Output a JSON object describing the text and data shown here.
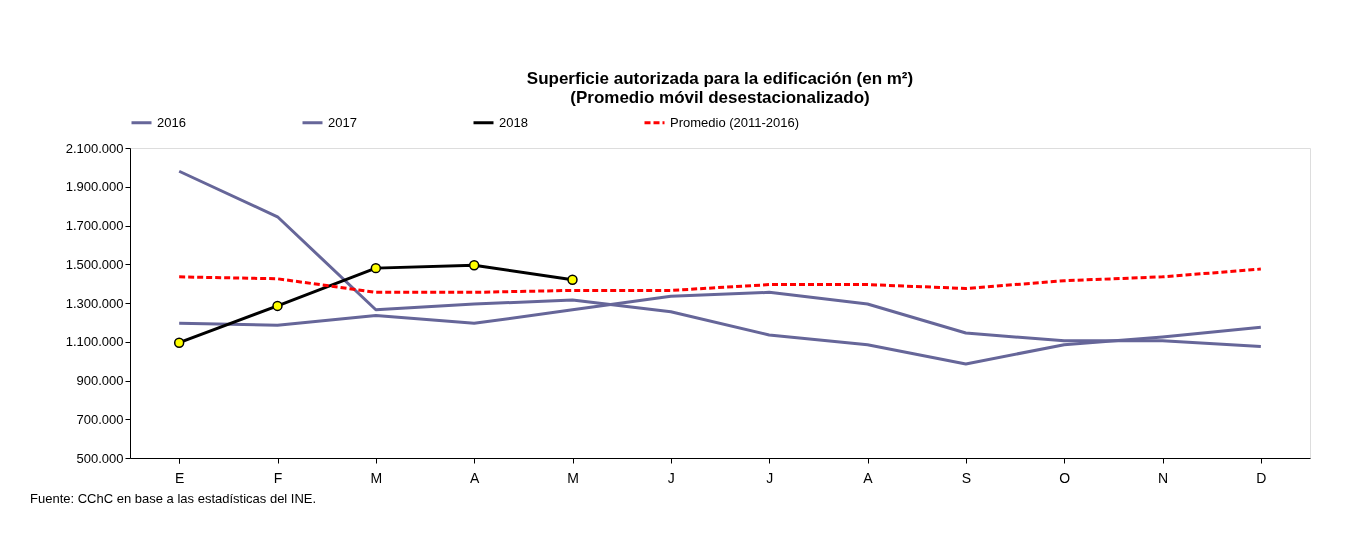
{
  "chart_data": {
    "type": "line",
    "title": [
      "Superficie autorizada para la edificación (en m²)",
      "(Promedio móvil desestacionalizado)"
    ],
    "categories": [
      "E",
      "F",
      "M",
      "A",
      "M",
      "J",
      "J",
      "A",
      "S",
      "O",
      "N",
      "D"
    ],
    "series": [
      {
        "name": "2016",
        "color": "#666699",
        "values": [
          1980000,
          1745000,
          1265000,
          1295000,
          1315000,
          1255000,
          1135000,
          1085000,
          985000,
          1085000,
          1125000,
          1175000
        ]
      },
      {
        "name": "2017",
        "color": "#666699",
        "values": [
          1195000,
          1185000,
          1235000,
          1195000,
          1265000,
          1335000,
          1355000,
          1295000,
          1145000,
          1105000,
          1105000,
          1075000
        ]
      },
      {
        "name": "2018",
        "color": "#000000",
        "marker": "circle",
        "values": [
          1095000,
          1285000,
          1480000,
          1495000,
          1420000,
          null,
          null,
          null,
          null,
          null,
          null,
          null
        ]
      },
      {
        "name": "Promedio (2011-2016)",
        "color": "#ff0000",
        "line_style": "dashed",
        "values": [
          1435000,
          1425000,
          1355000,
          1355000,
          1365000,
          1365000,
          1395000,
          1395000,
          1375000,
          1415000,
          1435000,
          1475000
        ]
      }
    ],
    "ylim": [
      500000,
      2100000
    ],
    "yticks": [
      {
        "value": 500000,
        "label": "500.000"
      },
      {
        "value": 700000,
        "label": "700.000"
      },
      {
        "value": 900000,
        "label": "900.000"
      },
      {
        "value": 1100000,
        "label": "1.100.000"
      },
      {
        "value": 1300000,
        "label": "1.300.000"
      },
      {
        "value": 1500000,
        "label": "1.500.000"
      },
      {
        "value": 1700000,
        "label": "1.700.000"
      },
      {
        "value": 1900000,
        "label": "1.900.000"
      },
      {
        "value": 2100000,
        "label": "2.100.000"
      }
    ],
    "grid": false,
    "legend": "top",
    "annotations": [
      "Fuente: CChC  en base a las estadísticas del INE."
    ]
  }
}
